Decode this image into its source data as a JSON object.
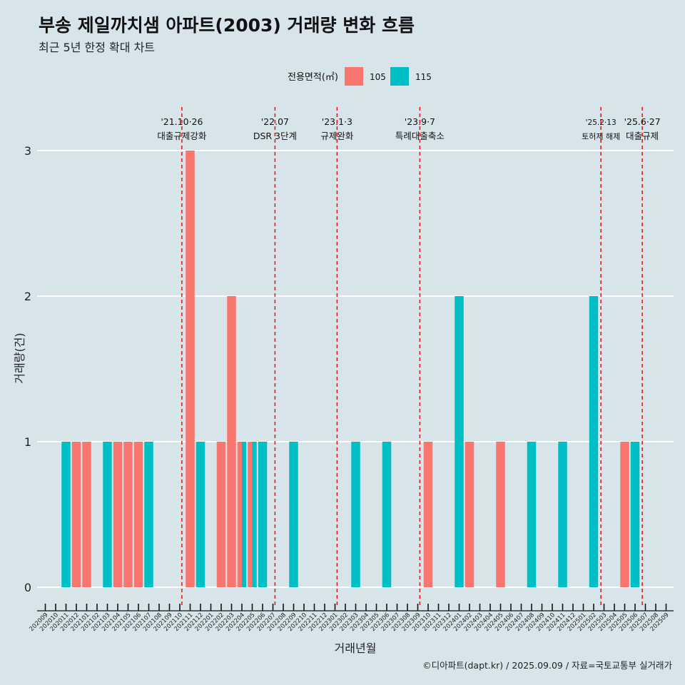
{
  "title": "부송 제일까치샘 아파트(2003) 거래량 변화 흐름",
  "subtitle": "최근 5년 한정 확대 차트",
  "caption": "©디아파트(dapt.kr) / 2025.09.09 / 자료=국토교통부 실거래가",
  "chart_data": {
    "type": "bar",
    "xlabel": "거래년월",
    "ylabel": "거래량(건)",
    "ylim": [
      0,
      3
    ],
    "yticks": [
      0,
      1,
      2,
      3
    ],
    "grid": true,
    "legend": {
      "title": "전용면적(㎡)",
      "position": "top"
    },
    "categories": [
      "202009",
      "202010",
      "202011",
      "202012",
      "202101",
      "202102",
      "202103",
      "202104",
      "202105",
      "202106",
      "202107",
      "202108",
      "202109",
      "202110",
      "202111",
      "202112",
      "202201",
      "202202",
      "202203",
      "202204",
      "202205",
      "202206",
      "202207",
      "202208",
      "202209",
      "202210",
      "202211",
      "202212",
      "202301",
      "202302",
      "202303",
      "202304",
      "202305",
      "202306",
      "202307",
      "202308",
      "202309",
      "202310",
      "202311",
      "202312",
      "202401",
      "202402",
      "202403",
      "202404",
      "202405",
      "202406",
      "202407",
      "202408",
      "202409",
      "202410",
      "202411",
      "202412",
      "202501",
      "202502",
      "202503",
      "202504",
      "202505",
      "202506",
      "202507",
      "202508",
      "202509"
    ],
    "series": [
      {
        "name": "105",
        "color": "#f8766d",
        "points": [
          {
            "x": "202012",
            "y": 1
          },
          {
            "x": "202101",
            "y": 1
          },
          {
            "x": "202104",
            "y": 1
          },
          {
            "x": "202105",
            "y": 1
          },
          {
            "x": "202106",
            "y": 1
          },
          {
            "x": "202111",
            "y": 3
          },
          {
            "x": "202202",
            "y": 1
          },
          {
            "x": "202203",
            "y": 2
          },
          {
            "x": "202204",
            "y": 1
          },
          {
            "x": "202205",
            "y": 1
          },
          {
            "x": "202310",
            "y": 1
          },
          {
            "x": "202402",
            "y": 1
          },
          {
            "x": "202405",
            "y": 1
          },
          {
            "x": "202505",
            "y": 1
          }
        ]
      },
      {
        "name": "115",
        "color": "#00bfc4",
        "points": [
          {
            "x": "202011",
            "y": 1
          },
          {
            "x": "202103",
            "y": 1
          },
          {
            "x": "202107",
            "y": 1
          },
          {
            "x": "202112",
            "y": 1
          },
          {
            "x": "202204",
            "y": 1
          },
          {
            "x": "202205",
            "y": 1
          },
          {
            "x": "202206",
            "y": 1
          },
          {
            "x": "202209",
            "y": 1
          },
          {
            "x": "202303",
            "y": 1
          },
          {
            "x": "202306",
            "y": 1
          },
          {
            "x": "202401",
            "y": 2
          },
          {
            "x": "202408",
            "y": 1
          },
          {
            "x": "202411",
            "y": 1
          },
          {
            "x": "202502",
            "y": 2
          },
          {
            "x": "202506",
            "y": 1
          }
        ]
      }
    ],
    "events": [
      {
        "x": 13.2,
        "date": "'21.10·26",
        "label": "대출규제강화"
      },
      {
        "x": 22.2,
        "date": "'22.07",
        "label": "DSR 3단계"
      },
      {
        "x": 28.2,
        "date": "'23.1·3",
        "label": "규제완화"
      },
      {
        "x": 36.2,
        "date": "'23.9·7",
        "label": "특례대출축소"
      },
      {
        "x": 53.7,
        "date": "'25.2·13",
        "label": "토허제 해제"
      },
      {
        "x": 57.7,
        "date": "'25.6·27",
        "label": "대출규제"
      }
    ]
  }
}
